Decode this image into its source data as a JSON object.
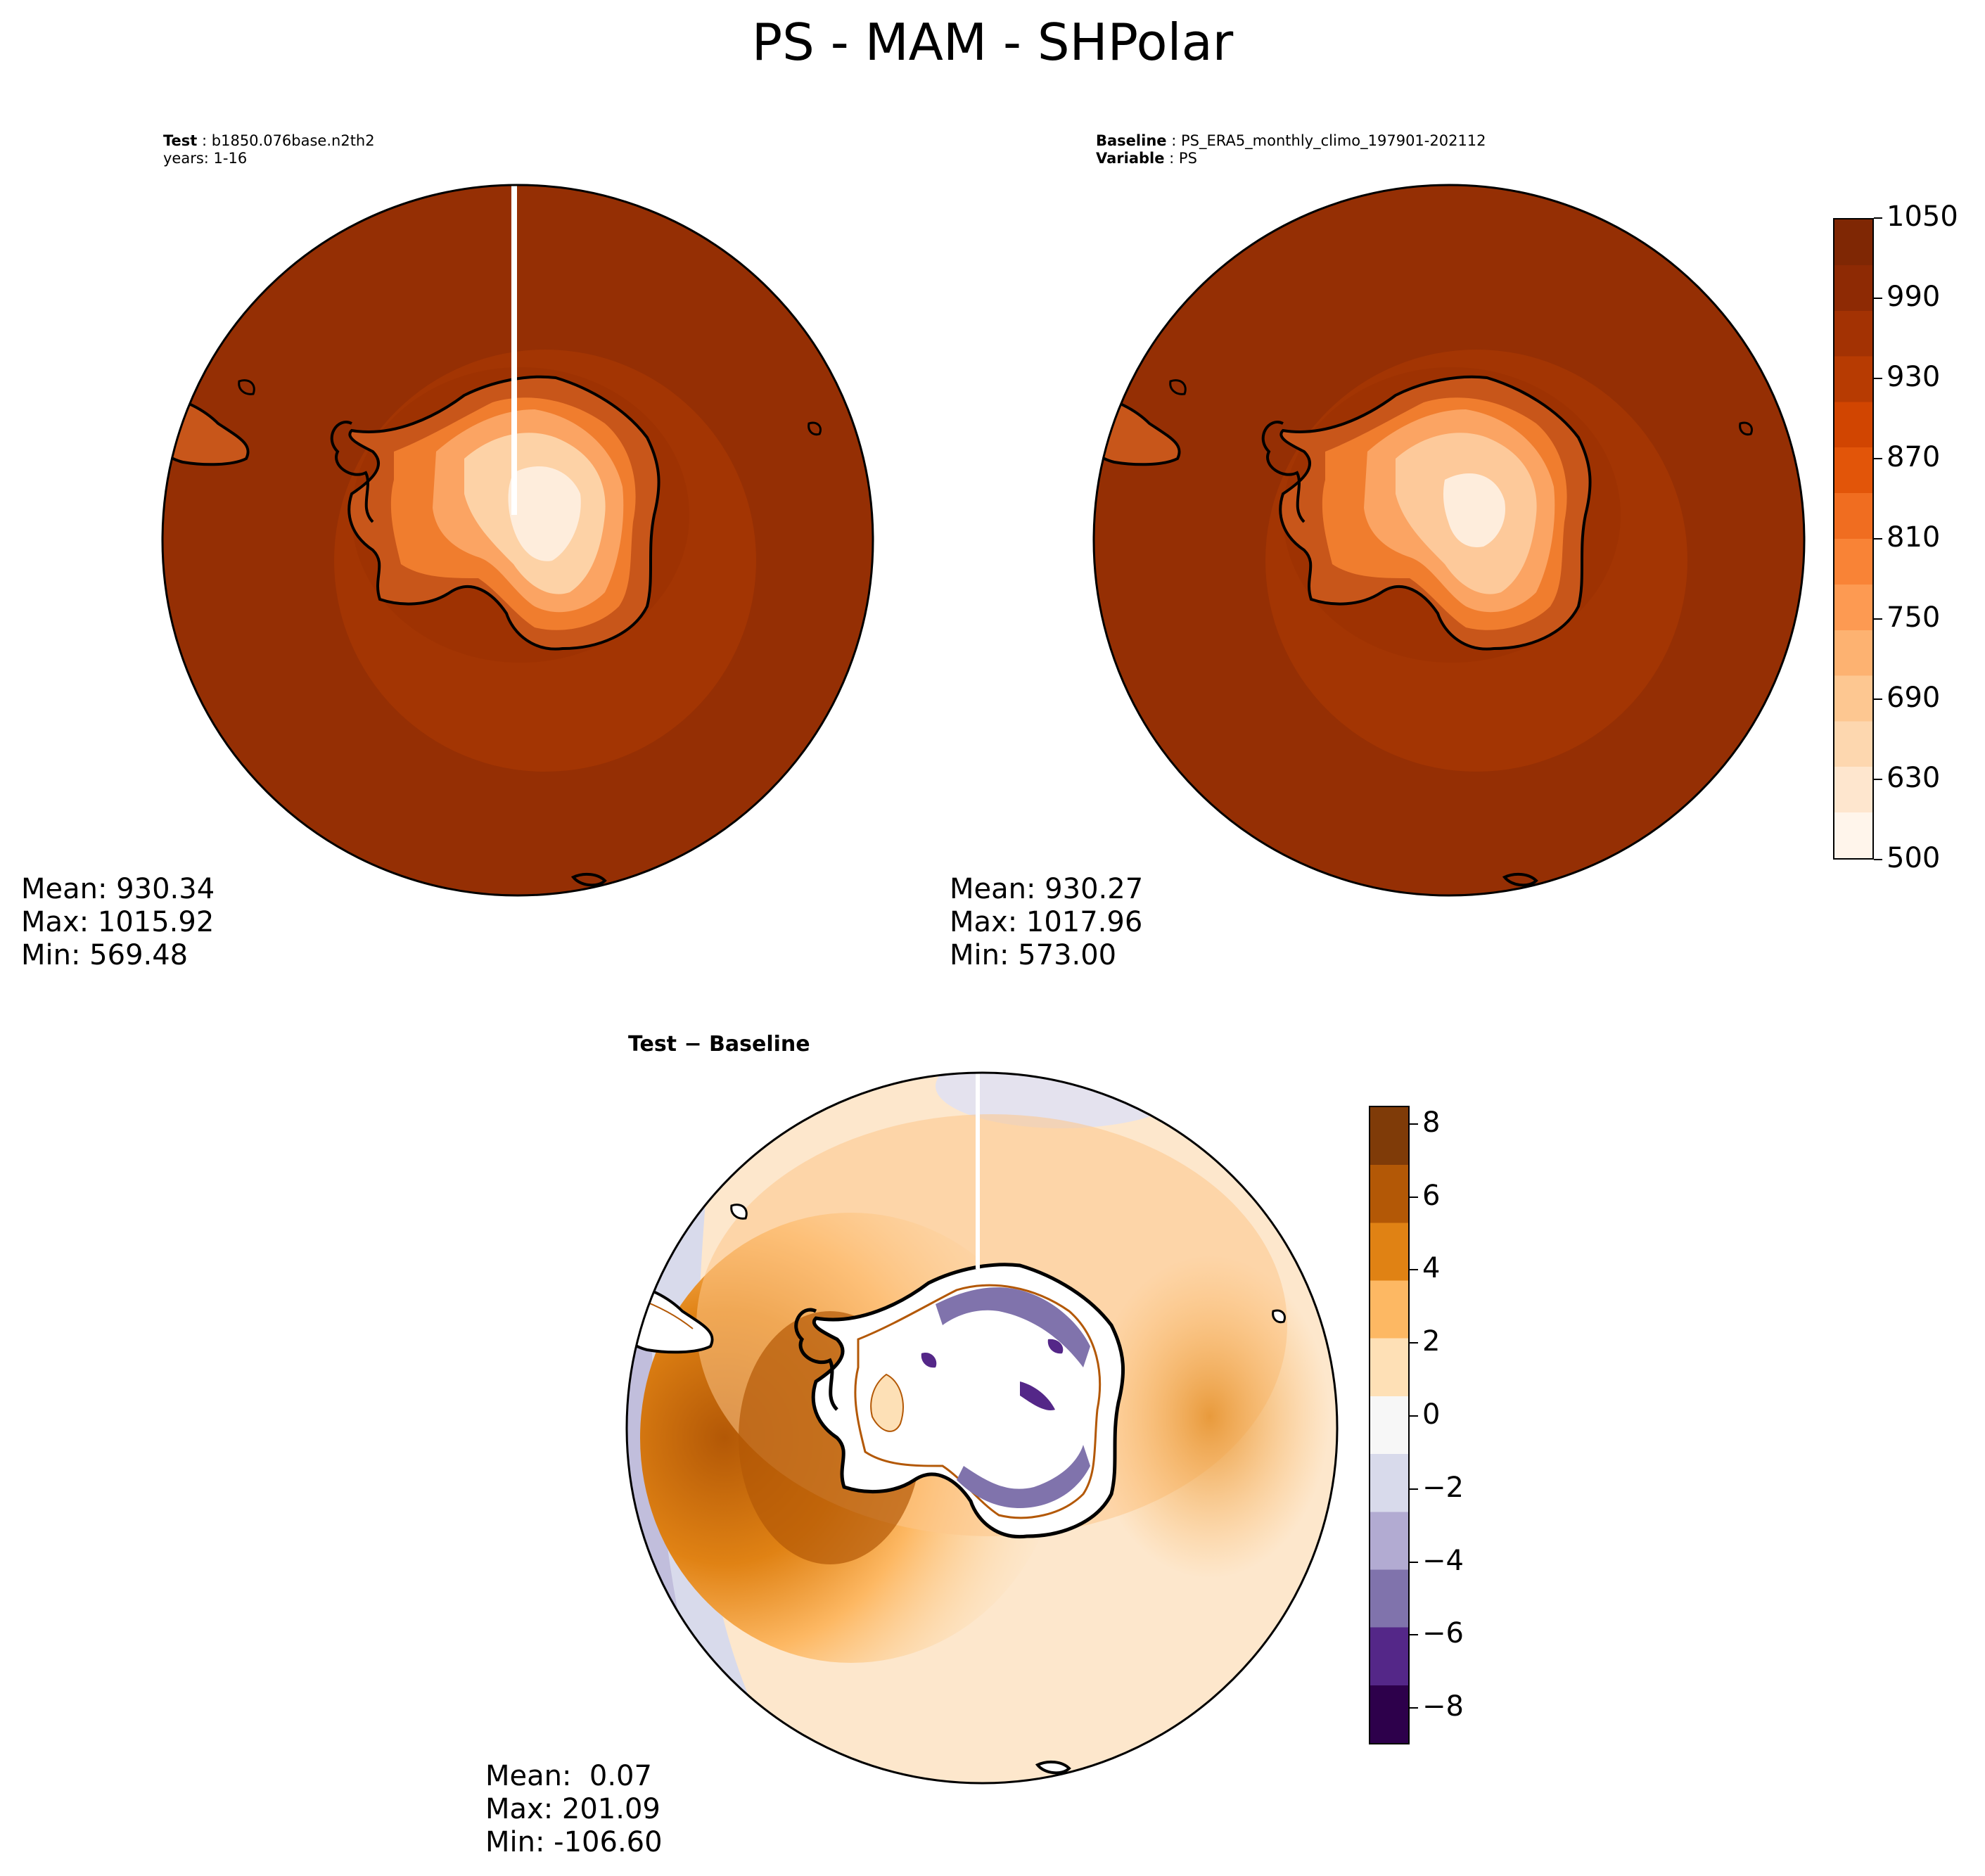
{
  "figure": {
    "title": "PS - MAM - SHPolar"
  },
  "panels": [
    {
      "id": "test",
      "title_lines": [
        {
          "label": "Test",
          "value": "b1850.076base.n2th2"
        },
        {
          "label": "",
          "value": "years: 1-16"
        }
      ],
      "stats": {
        "mean": "Mean: 930.34",
        "max": "Max: 1015.92",
        "min": "Min: 569.48"
      }
    },
    {
      "id": "baseline",
      "title_lines": [
        {
          "label": "Baseline",
          "value": "PS_ERA5_monthly_climo_197901-202112"
        },
        {
          "label": "Variable",
          "value": "PS"
        }
      ],
      "stats": {
        "mean": "Mean: 930.27",
        "max": "Max: 1017.96",
        "min": "Min: 573.00"
      }
    },
    {
      "id": "diff",
      "title_lines": [
        {
          "label": "Test − Baseline",
          "value": ""
        }
      ],
      "stats": {
        "mean": "Mean:  0.07",
        "max": "Max: 201.09",
        "min": "Min: -106.60"
      }
    }
  ],
  "colorbars": {
    "field": {
      "colormap": "Oranges",
      "range": [
        500,
        1050
      ],
      "ticks": [
        "1050",
        "990",
        "930",
        "870",
        "810",
        "750",
        "690",
        "630",
        "500"
      ],
      "colors": [
        "#fff5eb",
        "#fee6ce",
        "#fdd7af",
        "#fdc791",
        "#fdb271",
        "#fd9a52",
        "#f98336",
        "#f06d20",
        "#e25509",
        "#d14501",
        "#b73b02",
        "#a33203",
        "#8e2a04",
        "#7f2704"
      ]
    },
    "diff": {
      "colormap": "PuOr_r",
      "range": [
        -9,
        8.5
      ],
      "ticks": [
        "8",
        "6",
        "4",
        "2",
        "0",
        "−2",
        "−4",
        "−6",
        "−8"
      ],
      "colors": [
        "#2d004b",
        "#542788",
        "#8073ac",
        "#b2abd2",
        "#d8daeb",
        "#f7f7f7",
        "#fee0b6",
        "#fdb863",
        "#e08214",
        "#b35806",
        "#7f3b08"
      ]
    }
  },
  "map_style": {
    "ocean_test": "#952f04",
    "ring_mid": "#a33503",
    "coast_color": "#000000",
    "diff_ocean": "#f6c894"
  }
}
